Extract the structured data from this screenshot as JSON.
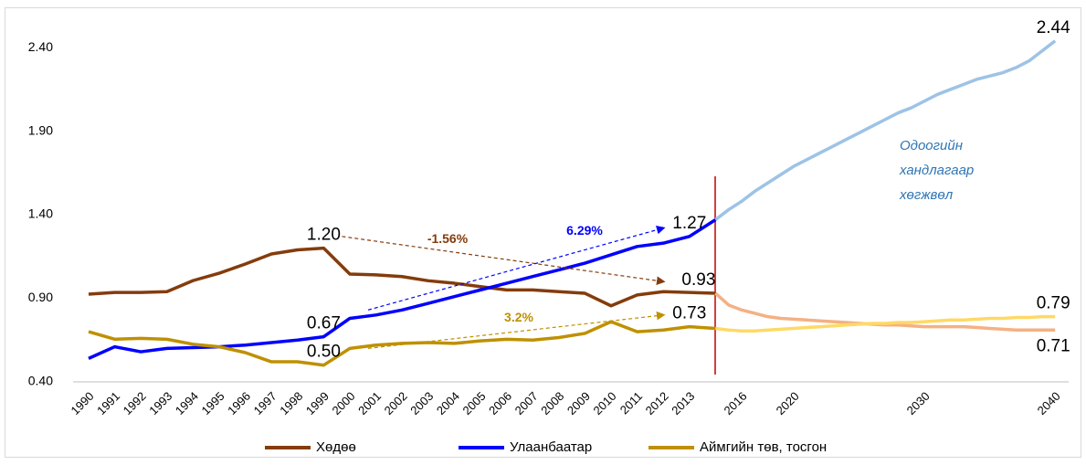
{
  "chart_data": {
    "type": "line",
    "categories": [
      1990,
      1991,
      1992,
      1993,
      1994,
      1995,
      1996,
      1997,
      1998,
      1999,
      2000,
      2001,
      2002,
      2003,
      2004,
      2005,
      2006,
      2007,
      2008,
      2009,
      2010,
      2011,
      2012,
      2013,
      null,
      null,
      2016,
      null,
      null,
      null,
      2020,
      null,
      null,
      null,
      null,
      null,
      null,
      null,
      null,
      null,
      2030,
      null,
      null,
      null,
      null,
      null,
      null,
      null,
      null,
      null,
      2040
    ],
    "ylim": [
      0.4,
      2.63
    ],
    "yticks": [
      {
        "value": 0.4,
        "label": "0.40"
      },
      {
        "value": 0.9,
        "label": "0.90"
      },
      {
        "value": 1.4,
        "label": "1.40"
      },
      {
        "value": 1.9,
        "label": "1.90"
      },
      {
        "value": 2.4,
        "label": "2.40"
      }
    ],
    "grid": false,
    "legend": "bottom",
    "series": [
      {
        "name": "Хөдөө",
        "color": "#843c0c",
        "values": [
          0.925,
          0.935,
          0.935,
          0.94,
          1.006,
          1.05,
          1.105,
          1.165,
          1.19,
          1.2,
          1.045,
          1.04,
          1.03,
          1.005,
          0.99,
          0.97,
          0.95,
          0.95,
          0.94,
          0.93,
          0.855,
          0.92,
          0.94,
          0.935,
          0.93,
          null,
          null,
          null,
          null,
          null,
          null,
          null,
          null,
          null,
          null,
          null,
          null,
          null,
          null,
          null,
          null,
          null,
          null,
          null,
          null,
          null,
          null,
          null,
          null,
          null,
          null
        ],
        "value_labels": [
          null,
          null,
          null,
          null,
          null,
          null,
          null,
          null,
          null,
          "1.20",
          null,
          null,
          null,
          null,
          null,
          null,
          null,
          null,
          null,
          null,
          null,
          null,
          null,
          null,
          "0.93",
          null,
          null,
          null,
          null,
          null,
          null,
          null,
          null,
          null,
          null,
          null,
          null,
          null,
          null,
          null,
          null,
          null,
          null,
          null,
          null,
          null,
          null,
          null,
          null,
          null,
          null
        ]
      },
      {
        "name": "Улаанбаатар",
        "color": "#0000ff",
        "values": [
          0.54,
          0.61,
          0.58,
          0.6,
          0.605,
          0.61,
          0.62,
          0.635,
          0.65,
          0.67,
          0.78,
          0.8,
          0.83,
          0.87,
          0.91,
          0.95,
          0.99,
          1.03,
          1.07,
          1.11,
          1.16,
          1.21,
          1.23,
          1.27,
          1.37,
          null,
          null,
          null,
          null,
          null,
          null,
          null,
          null,
          null,
          null,
          null,
          null,
          null,
          null,
          null,
          null,
          null,
          null,
          null,
          null,
          null,
          null,
          null,
          null,
          null,
          null
        ],
        "value_labels": [
          null,
          null,
          null,
          null,
          null,
          null,
          null,
          null,
          null,
          "0.67",
          null,
          null,
          null,
          null,
          null,
          null,
          null,
          null,
          null,
          null,
          null,
          null,
          null,
          "1.27",
          null,
          null,
          null,
          null,
          null,
          null,
          null,
          null,
          null,
          null,
          null,
          null,
          null,
          null,
          null,
          null,
          null,
          null,
          null,
          null,
          null,
          null,
          null,
          null,
          null,
          null,
          null
        ]
      },
      {
        "name": "Аймгийн төв, тосгон",
        "color": "#bf9000",
        "values": [
          0.7,
          0.655,
          0.66,
          0.655,
          0.625,
          0.61,
          0.575,
          0.52,
          0.52,
          0.5,
          0.6,
          0.62,
          0.63,
          0.635,
          0.63,
          0.645,
          0.655,
          0.65,
          0.665,
          0.69,
          0.76,
          0.7,
          0.71,
          0.73,
          0.72,
          null,
          null,
          null,
          null,
          null,
          null,
          null,
          null,
          null,
          null,
          null,
          null,
          null,
          null,
          null,
          null,
          null,
          null,
          null,
          null,
          null,
          null,
          null,
          null,
          null,
          null
        ],
        "value_labels": [
          null,
          null,
          null,
          null,
          null,
          null,
          null,
          null,
          null,
          "0.50",
          null,
          null,
          null,
          null,
          null,
          null,
          null,
          null,
          null,
          null,
          null,
          null,
          null,
          "0.73",
          null,
          null,
          null,
          null,
          null,
          null,
          null,
          null,
          null,
          null,
          null,
          null,
          null,
          null,
          null,
          null,
          null,
          null,
          null,
          null,
          null,
          null,
          null,
          null,
          null,
          null,
          null
        ]
      },
      {
        "color": "#9dc3e6",
        "values": [
          null,
          null,
          null,
          null,
          null,
          null,
          null,
          null,
          null,
          null,
          null,
          null,
          null,
          null,
          null,
          null,
          null,
          null,
          null,
          null,
          null,
          null,
          null,
          null,
          1.37,
          1.43,
          1.48,
          1.54,
          1.59,
          1.64,
          1.69,
          1.73,
          1.77,
          1.81,
          1.85,
          1.89,
          1.93,
          1.97,
          2.01,
          2.04,
          2.08,
          2.12,
          2.15,
          2.18,
          2.21,
          2.23,
          2.25,
          2.28,
          2.32,
          2.38,
          2.44
        ],
        "value_labels": [
          null,
          null,
          null,
          null,
          null,
          null,
          null,
          null,
          null,
          null,
          null,
          null,
          null,
          null,
          null,
          null,
          null,
          null,
          null,
          null,
          null,
          null,
          null,
          null,
          null,
          null,
          null,
          null,
          null,
          null,
          null,
          null,
          null,
          null,
          null,
          null,
          null,
          null,
          null,
          null,
          null,
          null,
          null,
          null,
          null,
          null,
          null,
          null,
          null,
          null,
          "2.44"
        ]
      },
      {
        "color": "#f4b183",
        "values": [
          null,
          null,
          null,
          null,
          null,
          null,
          null,
          null,
          null,
          null,
          null,
          null,
          null,
          null,
          null,
          null,
          null,
          null,
          null,
          null,
          null,
          null,
          null,
          null,
          0.93,
          0.86,
          0.83,
          0.81,
          0.79,
          0.78,
          0.775,
          0.77,
          0.765,
          0.76,
          0.755,
          0.75,
          0.745,
          0.74,
          0.74,
          0.735,
          0.73,
          0.73,
          0.73,
          0.73,
          0.725,
          0.72,
          0.715,
          0.71,
          0.71,
          0.71,
          0.71
        ],
        "value_labels": [
          null,
          null,
          null,
          null,
          null,
          null,
          null,
          null,
          null,
          null,
          null,
          null,
          null,
          null,
          null,
          null,
          null,
          null,
          null,
          null,
          null,
          null,
          null,
          null,
          null,
          null,
          null,
          null,
          null,
          null,
          null,
          null,
          null,
          null,
          null,
          null,
          null,
          null,
          null,
          null,
          null,
          null,
          null,
          null,
          null,
          null,
          null,
          null,
          null,
          null,
          "0.71"
        ]
      },
      {
        "color": "#ffd966",
        "values": [
          null,
          null,
          null,
          null,
          null,
          null,
          null,
          null,
          null,
          null,
          null,
          null,
          null,
          null,
          null,
          null,
          null,
          null,
          null,
          null,
          null,
          null,
          null,
          null,
          0.72,
          0.71,
          0.705,
          0.705,
          0.71,
          0.715,
          0.72,
          0.725,
          0.73,
          0.735,
          0.74,
          0.745,
          0.75,
          0.75,
          0.755,
          0.755,
          0.76,
          0.765,
          0.77,
          0.77,
          0.775,
          0.78,
          0.78,
          0.785,
          0.785,
          0.79,
          0.79
        ],
        "value_labels": [
          null,
          null,
          null,
          null,
          null,
          null,
          null,
          null,
          null,
          null,
          null,
          null,
          null,
          null,
          null,
          null,
          null,
          null,
          null,
          null,
          null,
          null,
          null,
          null,
          null,
          null,
          null,
          null,
          null,
          null,
          null,
          null,
          null,
          null,
          null,
          null,
          null,
          null,
          null,
          null,
          null,
          null,
          null,
          null,
          null,
          null,
          null,
          null,
          null,
          null,
          "0.79"
        ]
      }
    ],
    "annotations": [
      "-1.56%",
      "6.29%",
      "3.2%"
    ],
    "note": [
      "Одоогийн",
      "хандлагаар",
      "хөгжвөл"
    ]
  }
}
